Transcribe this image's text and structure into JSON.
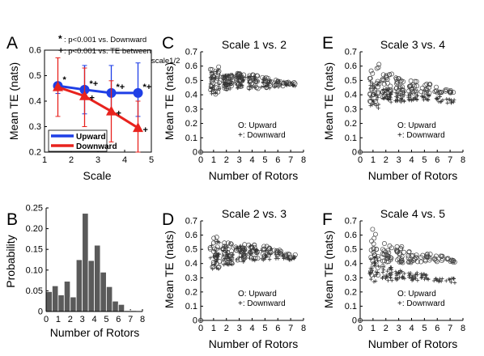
{
  "chart_data": [
    {
      "panel": "A",
      "type": "line",
      "title": "",
      "xlabel": "Scale",
      "ylabel": "Mean TE (nats)",
      "xlim": [
        1,
        5
      ],
      "ylim": [
        0.2,
        0.6
      ],
      "xticks": [
        "1",
        "2",
        "3",
        "4",
        "5"
      ],
      "yticks": [
        "0.2",
        "0.3",
        "0.4",
        "0.5",
        "0.6"
      ],
      "annotations": {
        "star_note": ": p<0.001 vs. Downward",
        "plus_note_line1": ": p<0.001 vs. TE between",
        "plus_note_line2": "scale1/2",
        "star": "*",
        "plus": "+",
        "star_plus": "*+"
      },
      "legend": {
        "placement": "bottom-left",
        "entries": [
          "Upward",
          "Downward"
        ]
      },
      "series": [
        {
          "name": "Upward",
          "color": "#1f3fe6",
          "marker": "circle",
          "x": [
            1.5,
            2.5,
            3.5,
            4.5
          ],
          "values": [
            0.46,
            0.445,
            0.432,
            0.432
          ],
          "err_low": [
            0.43,
            0.35,
            0.35,
            0.34
          ],
          "err_high": [
            0.47,
            0.54,
            0.54,
            0.55
          ],
          "marks": [
            "*",
            "*+",
            "*+",
            "*+"
          ]
        },
        {
          "name": "Downward",
          "color": "#e8231e",
          "marker": "triangle",
          "x": [
            1.5,
            2.5,
            3.5,
            4.5
          ],
          "values": [
            0.455,
            0.42,
            0.36,
            0.295
          ],
          "err_low": [
            0.34,
            0.3,
            0.24,
            0.2
          ],
          "err_high": [
            0.57,
            0.53,
            0.48,
            0.4
          ],
          "marks": [
            "",
            "+",
            "+",
            "+"
          ]
        }
      ]
    },
    {
      "panel": "B",
      "type": "bar",
      "title": "",
      "xlabel": "Number of Rotors",
      "ylabel": "Probability",
      "xlim": [
        0,
        8
      ],
      "ylim": [
        0,
        0.25
      ],
      "xticks": [
        "0",
        "1",
        "2",
        "3",
        "4",
        "5",
        "6",
        "7",
        "8"
      ],
      "yticks": [
        "0",
        "0.05",
        "0.10",
        "0.15",
        "0.20",
        "0.25"
      ],
      "bin_width": 0.5,
      "bin_starts": [
        0,
        0.5,
        1,
        1.5,
        2,
        2.5,
        3,
        3.5,
        4,
        4.5,
        5,
        5.5,
        6,
        6.5,
        7
      ],
      "values": [
        0.048,
        0.062,
        0.04,
        0.073,
        0.035,
        0.125,
        0.237,
        0.123,
        0.16,
        0.095,
        0.06,
        0.025,
        0.017,
        0.002,
        0.002
      ]
    },
    {
      "panel": "C",
      "type": "scatter",
      "title": "Scale 1 vs. 2",
      "xlabel": "Number of Rotors",
      "ylabel": "Mean TE (nats)",
      "xlim": [
        0,
        8
      ],
      "ylim": [
        0,
        0.7
      ],
      "xticks": [
        "0",
        "1",
        "2",
        "3",
        "4",
        "5",
        "6",
        "7",
        "8"
      ],
      "yticks": [
        "0",
        "0.1",
        "0.2",
        "0.3",
        "0.4",
        "0.5",
        "0.6",
        "0.7"
      ],
      "legend": {
        "placement": "center",
        "entries": [
          "O: Upward",
          "+: Downward"
        ]
      },
      "series": [
        {
          "name": "Upward",
          "marker": "o",
          "groups": [
            {
              "x": 0,
              "min": 0.0,
              "max": 0.0
            },
            {
              "x": 1,
              "min": 0.4,
              "max": 0.6
            },
            {
              "x": 2,
              "min": 0.44,
              "max": 0.55
            },
            {
              "x": 3,
              "min": 0.44,
              "max": 0.55
            },
            {
              "x": 4,
              "min": 0.44,
              "max": 0.54
            },
            {
              "x": 5,
              "min": 0.45,
              "max": 0.53
            },
            {
              "x": 6,
              "min": 0.46,
              "max": 0.51
            },
            {
              "x": 7,
              "min": 0.47,
              "max": 0.49
            }
          ]
        },
        {
          "name": "Downward",
          "marker": "+",
          "groups": [
            {
              "x": 0,
              "min": 0.0,
              "max": 0.0
            },
            {
              "x": 1,
              "min": 0.4,
              "max": 0.58
            },
            {
              "x": 2,
              "min": 0.43,
              "max": 0.54
            },
            {
              "x": 3,
              "min": 0.43,
              "max": 0.54
            },
            {
              "x": 4,
              "min": 0.43,
              "max": 0.53
            },
            {
              "x": 5,
              "min": 0.44,
              "max": 0.52
            },
            {
              "x": 6,
              "min": 0.45,
              "max": 0.5
            },
            {
              "x": 7,
              "min": 0.46,
              "max": 0.48
            }
          ]
        }
      ]
    },
    {
      "panel": "D",
      "type": "scatter",
      "title": "Scale 2 vs. 3",
      "xlabel": "Number of Rotors",
      "ylabel": "Mean TE (nats)",
      "xlim": [
        0,
        8
      ],
      "ylim": [
        0,
        0.7
      ],
      "xticks": [
        "0",
        "1",
        "2",
        "3",
        "4",
        "5",
        "6",
        "7",
        "8"
      ],
      "yticks": [
        "0",
        "0.1",
        "0.2",
        "0.3",
        "0.4",
        "0.5",
        "0.6",
        "0.7"
      ],
      "legend": {
        "placement": "center",
        "entries": [
          "O: Upward",
          "+: Downward"
        ]
      },
      "series": [
        {
          "name": "Upward",
          "marker": "o",
          "groups": [
            {
              "x": 0,
              "min": 0.0,
              "max": 0.0
            },
            {
              "x": 1,
              "min": 0.37,
              "max": 0.6
            },
            {
              "x": 2,
              "min": 0.4,
              "max": 0.55
            },
            {
              "x": 3,
              "min": 0.42,
              "max": 0.55
            },
            {
              "x": 4,
              "min": 0.43,
              "max": 0.55
            },
            {
              "x": 5,
              "min": 0.44,
              "max": 0.53
            },
            {
              "x": 6,
              "min": 0.44,
              "max": 0.5
            },
            {
              "x": 7,
              "min": 0.44,
              "max": 0.47
            }
          ]
        },
        {
          "name": "Downward",
          "marker": "+",
          "groups": [
            {
              "x": 0,
              "min": 0.0,
              "max": 0.0
            },
            {
              "x": 1,
              "min": 0.36,
              "max": 0.58
            },
            {
              "x": 2,
              "min": 0.39,
              "max": 0.53
            },
            {
              "x": 3,
              "min": 0.41,
              "max": 0.53
            },
            {
              "x": 4,
              "min": 0.42,
              "max": 0.53
            },
            {
              "x": 5,
              "min": 0.42,
              "max": 0.51
            },
            {
              "x": 6,
              "min": 0.42,
              "max": 0.48
            },
            {
              "x": 7,
              "min": 0.42,
              "max": 0.45
            }
          ]
        }
      ]
    },
    {
      "panel": "E",
      "type": "scatter",
      "title": "Scale 3 vs. 4",
      "xlabel": "Number of Rotors",
      "ylabel": "Mean TE (nats)",
      "xlim": [
        0,
        8
      ],
      "ylim": [
        0,
        0.7
      ],
      "xticks": [
        "0",
        "1",
        "2",
        "3",
        "4",
        "5",
        "6",
        "7",
        "8"
      ],
      "yticks": [
        "0",
        "0.1",
        "0.2",
        "0.3",
        "0.4",
        "0.5",
        "0.6",
        "0.7"
      ],
      "legend": {
        "placement": "center",
        "entries": [
          "O: Upward",
          "+: Downward"
        ]
      },
      "series": [
        {
          "name": "Upward",
          "marker": "o",
          "groups": [
            {
              "x": 0,
              "min": 0.0,
              "max": 0.0
            },
            {
              "x": 1,
              "min": 0.34,
              "max": 0.62
            },
            {
              "x": 2,
              "min": 0.37,
              "max": 0.55
            },
            {
              "x": 3,
              "min": 0.39,
              "max": 0.52
            },
            {
              "x": 4,
              "min": 0.4,
              "max": 0.5
            },
            {
              "x": 5,
              "min": 0.41,
              "max": 0.48
            },
            {
              "x": 6,
              "min": 0.41,
              "max": 0.46
            },
            {
              "x": 7,
              "min": 0.41,
              "max": 0.44
            }
          ]
        },
        {
          "name": "Downward",
          "marker": "+",
          "groups": [
            {
              "x": 0,
              "min": 0.0,
              "max": 0.0
            },
            {
              "x": 1,
              "min": 0.3,
              "max": 0.5
            },
            {
              "x": 2,
              "min": 0.34,
              "max": 0.44
            },
            {
              "x": 3,
              "min": 0.35,
              "max": 0.42
            },
            {
              "x": 4,
              "min": 0.36,
              "max": 0.41
            },
            {
              "x": 5,
              "min": 0.36,
              "max": 0.4
            },
            {
              "x": 6,
              "min": 0.35,
              "max": 0.39
            },
            {
              "x": 7,
              "min": 0.34,
              "max": 0.37
            }
          ]
        }
      ]
    },
    {
      "panel": "F",
      "type": "scatter",
      "title": "Scale 4 vs. 5",
      "xlabel": "Number of Rotors",
      "ylabel": "Mean TE (nats)",
      "xlim": [
        0,
        8
      ],
      "ylim": [
        0,
        0.7
      ],
      "xticks": [
        "0",
        "1",
        "2",
        "3",
        "4",
        "5",
        "6",
        "7",
        "8"
      ],
      "yticks": [
        "0",
        "0.1",
        "0.2",
        "0.3",
        "0.4",
        "0.5",
        "0.6",
        "0.7"
      ],
      "legend": {
        "placement": "center",
        "entries": [
          "O: Upward",
          "+: Downward"
        ]
      },
      "series": [
        {
          "name": "Upward",
          "marker": "o",
          "groups": [
            {
              "x": 0,
              "min": 0.0,
              "max": 0.0
            },
            {
              "x": 1,
              "min": 0.3,
              "max": 0.65
            },
            {
              "x": 2,
              "min": 0.38,
              "max": 0.55
            },
            {
              "x": 3,
              "min": 0.4,
              "max": 0.52
            },
            {
              "x": 4,
              "min": 0.4,
              "max": 0.5
            },
            {
              "x": 5,
              "min": 0.41,
              "max": 0.47
            },
            {
              "x": 6,
              "min": 0.41,
              "max": 0.46
            },
            {
              "x": 7,
              "min": 0.41,
              "max": 0.44
            }
          ]
        },
        {
          "name": "Downward",
          "marker": "+",
          "groups": [
            {
              "x": 0,
              "min": 0.0,
              "max": 0.0
            },
            {
              "x": 1,
              "min": 0.26,
              "max": 0.45
            },
            {
              "x": 2,
              "min": 0.28,
              "max": 0.38
            },
            {
              "x": 3,
              "min": 0.28,
              "max": 0.35
            },
            {
              "x": 4,
              "min": 0.28,
              "max": 0.34
            },
            {
              "x": 5,
              "min": 0.28,
              "max": 0.33
            },
            {
              "x": 6,
              "min": 0.27,
              "max": 0.31
            },
            {
              "x": 7,
              "min": 0.26,
              "max": 0.3
            }
          ]
        }
      ]
    }
  ]
}
